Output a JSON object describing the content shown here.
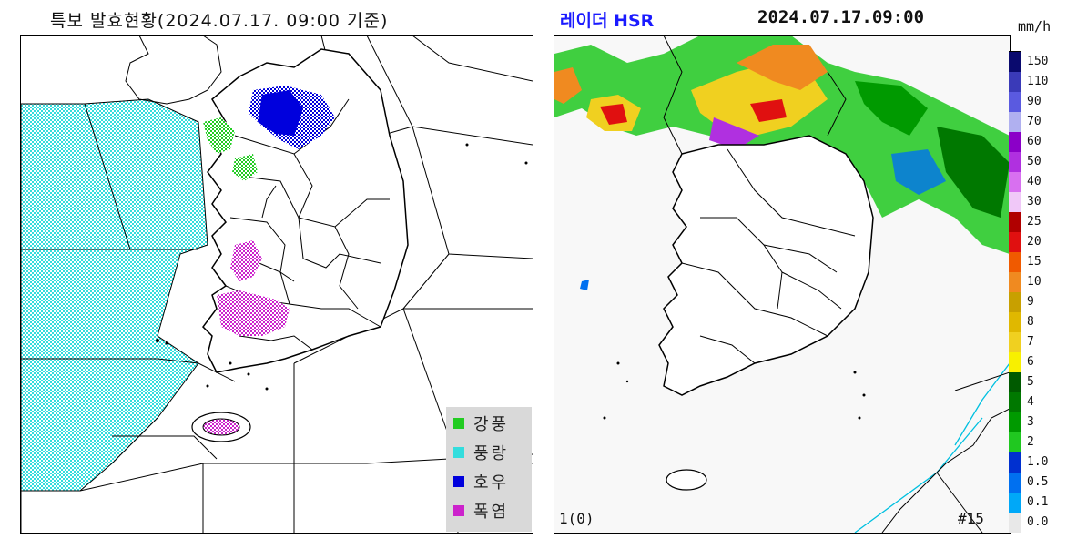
{
  "left_map": {
    "title": "특보 발효현황(2024.07.17. 09:00 기준)",
    "legend": [
      {
        "label": "강풍",
        "color": "#22cc22"
      },
      {
        "label": "풍랑",
        "color": "#33dddd"
      },
      {
        "label": "호우",
        "color": "#0000dd"
      },
      {
        "label": "폭염",
        "color": "#cc22cc"
      }
    ]
  },
  "right_map": {
    "title": "레이더 HSR",
    "timestamp": "2024.07.17.09:00",
    "unit": "mm/h",
    "status_label": "1(0)",
    "frame_label": "#15",
    "scale": [
      {
        "label": "150",
        "color": "#0a0a6e"
      },
      {
        "label": "110",
        "color": "#3a3ab8"
      },
      {
        "label": "90",
        "color": "#5a5ae0"
      },
      {
        "label": "70",
        "color": "#b0b0f0"
      },
      {
        "label": "60",
        "color": "#8b00c8"
      },
      {
        "label": "50",
        "color": "#b030e0"
      },
      {
        "label": "40",
        "color": "#d870f0"
      },
      {
        "label": "30",
        "color": "#f0c8f8"
      },
      {
        "label": "25",
        "color": "#b00000"
      },
      {
        "label": "20",
        "color": "#e01010"
      },
      {
        "label": "15",
        "color": "#f05a00"
      },
      {
        "label": "10",
        "color": "#f08a20"
      },
      {
        "label": "9",
        "color": "#c8a000"
      },
      {
        "label": "8",
        "color": "#e0b800"
      },
      {
        "label": "7",
        "color": "#f0d020"
      },
      {
        "label": "6",
        "color": "#f8f000"
      },
      {
        "label": "5",
        "color": "#005a00"
      },
      {
        "label": "4",
        "color": "#007800"
      },
      {
        "label": "3",
        "color": "#009a00"
      },
      {
        "label": "2",
        "color": "#20c820"
      },
      {
        "label": "1.0",
        "color": "#0030d0"
      },
      {
        "label": "0.5",
        "color": "#0070f0"
      },
      {
        "label": "0.1",
        "color": "#00a8f8"
      },
      {
        "label": "0.0",
        "color": "#e8e8e8"
      }
    ]
  }
}
